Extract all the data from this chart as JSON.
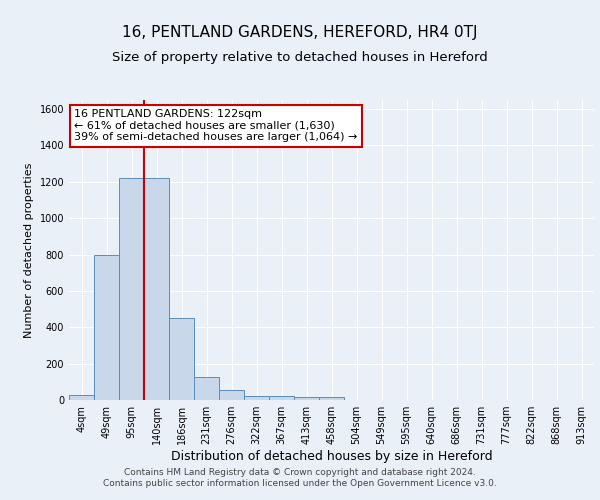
{
  "title1": "16, PENTLAND GARDENS, HEREFORD, HR4 0TJ",
  "title2": "Size of property relative to detached houses in Hereford",
  "xlabel": "Distribution of detached houses by size in Hereford",
  "ylabel": "Number of detached properties",
  "bin_labels": [
    "4sqm",
    "49sqm",
    "95sqm",
    "140sqm",
    "186sqm",
    "231sqm",
    "276sqm",
    "322sqm",
    "367sqm",
    "413sqm",
    "458sqm",
    "504sqm",
    "549sqm",
    "595sqm",
    "640sqm",
    "686sqm",
    "731sqm",
    "777sqm",
    "822sqm",
    "868sqm",
    "913sqm"
  ],
  "bar_heights": [
    25,
    800,
    1220,
    1220,
    450,
    125,
    55,
    20,
    20,
    15,
    15,
    0,
    0,
    0,
    0,
    0,
    0,
    0,
    0,
    0,
    0
  ],
  "bar_color": "#c8d8ea",
  "bar_edge_color": "#5590c0",
  "vline_index": 2.5,
  "vline_color": "#cc0000",
  "ylim": [
    0,
    1650
  ],
  "yticks": [
    0,
    200,
    400,
    600,
    800,
    1000,
    1200,
    1400,
    1600
  ],
  "annotation_line1": "16 PENTLAND GARDENS: 122sqm",
  "annotation_line2": "← 61% of detached houses are smaller (1,630)",
  "annotation_line3": "39% of semi-detached houses are larger (1,064) →",
  "annotation_box_color": "#ffffff",
  "annotation_box_edge": "#cc0000",
  "footer_text": "Contains HM Land Registry data © Crown copyright and database right 2024.\nContains public sector information licensed under the Open Government Licence v3.0.",
  "background_color": "#eaf0f8",
  "grid_color": "#ffffff",
  "title1_fontsize": 11,
  "title2_fontsize": 9.5,
  "ylabel_fontsize": 8,
  "xlabel_fontsize": 9,
  "tick_fontsize": 7,
  "ann_fontsize": 8,
  "footer_fontsize": 6.5
}
